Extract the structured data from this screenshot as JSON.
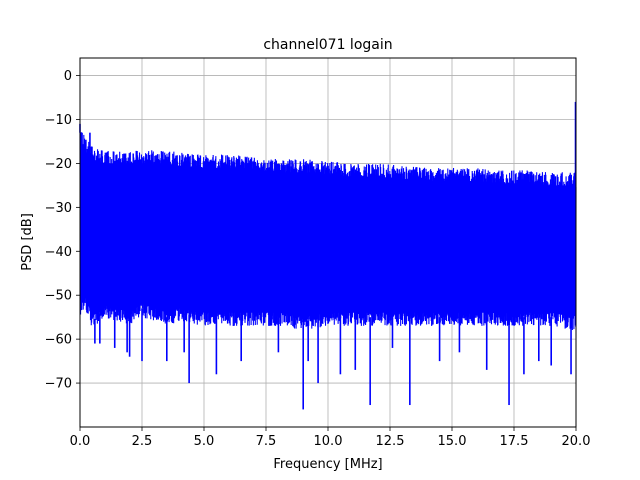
{
  "chart_data": {
    "type": "line",
    "title": "channel071 logain",
    "xlabel": "Frequency [MHz]",
    "ylabel": "PSD [dB]",
    "xlim": [
      0,
      20
    ],
    "ylim": [
      -80,
      4
    ],
    "xticks": [
      0,
      2.5,
      5,
      7.5,
      10,
      12.5,
      15,
      17.5,
      20
    ],
    "xtick_labels": [
      "0.0",
      "2.5",
      "5.0",
      "7.5",
      "10.0",
      "12.5",
      "15.0",
      "17.5",
      "20.0"
    ],
    "yticks": [
      0,
      -10,
      -20,
      -30,
      -40,
      -50,
      -60,
      -70
    ],
    "ytick_labels": [
      "0",
      "−10",
      "−20",
      "−30",
      "−40",
      "−50",
      "−60",
      "−70"
    ],
    "grid": true,
    "series_color": "#0000ff",
    "envelope": {
      "x": [
        0,
        0.2,
        0.5,
        1,
        1.5,
        2,
        2.5,
        3,
        3.5,
        4,
        5,
        6,
        7,
        8,
        9,
        10,
        11,
        12,
        13,
        14,
        15,
        16,
        17,
        18,
        19,
        19.9
      ],
      "upper": [
        -11,
        -14,
        -16,
        -17,
        -17,
        -17,
        -17,
        -17,
        -17,
        -17.5,
        -18,
        -18,
        -18.5,
        -19,
        -19,
        -19.5,
        -20,
        -20,
        -20.5,
        -21,
        -21,
        -21,
        -21.5,
        -21.5,
        -22,
        -22
      ],
      "lower": [
        -55,
        -53,
        -58,
        -55,
        -56,
        -57,
        -55,
        -56,
        -57,
        -56,
        -57,
        -57,
        -57,
        -57,
        -58,
        -57,
        -57,
        -57,
        -57,
        -57,
        -57,
        -57,
        -57,
        -57,
        -57,
        -58
      ]
    },
    "spikes_low": [
      {
        "x": 0.6,
        "y": -61
      },
      {
        "x": 0.8,
        "y": -61
      },
      {
        "x": 1.4,
        "y": -62
      },
      {
        "x": 1.9,
        "y": -63
      },
      {
        "x": 2.0,
        "y": -64
      },
      {
        "x": 2.5,
        "y": -65
      },
      {
        "x": 3.5,
        "y": -65
      },
      {
        "x": 4.2,
        "y": -63
      },
      {
        "x": 4.4,
        "y": -70
      },
      {
        "x": 5.5,
        "y": -68
      },
      {
        "x": 6.5,
        "y": -65
      },
      {
        "x": 8.0,
        "y": -63
      },
      {
        "x": 9.0,
        "y": -76
      },
      {
        "x": 9.2,
        "y": -65
      },
      {
        "x": 9.6,
        "y": -70
      },
      {
        "x": 10.5,
        "y": -68
      },
      {
        "x": 11.1,
        "y": -67
      },
      {
        "x": 11.7,
        "y": -75
      },
      {
        "x": 12.6,
        "y": -62
      },
      {
        "x": 13.3,
        "y": -75
      },
      {
        "x": 14.5,
        "y": -65
      },
      {
        "x": 15.3,
        "y": -63
      },
      {
        "x": 16.4,
        "y": -67
      },
      {
        "x": 17.3,
        "y": -75
      },
      {
        "x": 17.9,
        "y": -68
      },
      {
        "x": 18.5,
        "y": -65
      },
      {
        "x": 19.0,
        "y": -66
      },
      {
        "x": 19.8,
        "y": -68
      }
    ],
    "spikes_high": [
      {
        "x": 0.0,
        "y": -11
      },
      {
        "x": 0.4,
        "y": -13
      },
      {
        "x": 19.98,
        "y": -6
      }
    ]
  }
}
